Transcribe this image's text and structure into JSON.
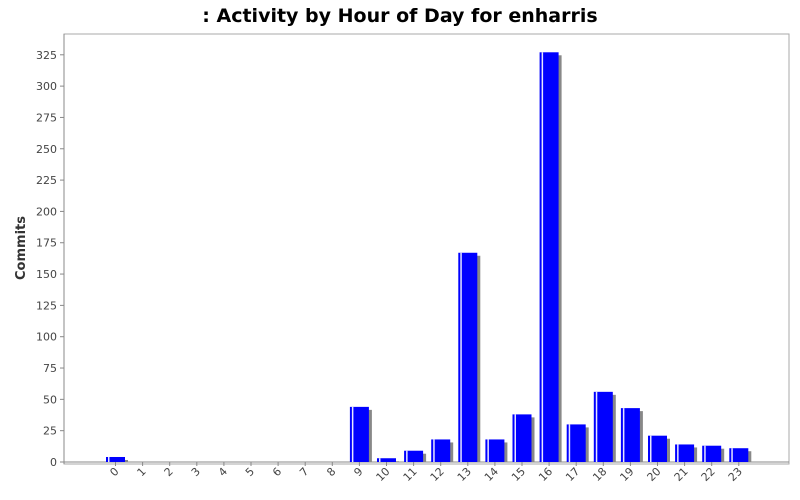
{
  "chart_data": {
    "type": "bar",
    "title": ": Activity by Hour of Day for enharris",
    "xlabel": "",
    "ylabel": "Commits",
    "categories": [
      "0",
      "1",
      "2",
      "3",
      "4",
      "5",
      "6",
      "7",
      "8",
      "9",
      "10",
      "11",
      "12",
      "13",
      "14",
      "15",
      "16",
      "17",
      "18",
      "19",
      "20",
      "21",
      "22",
      "23"
    ],
    "values": [
      4,
      0,
      0,
      0,
      0,
      0,
      0,
      0,
      0,
      44,
      3,
      9,
      18,
      167,
      18,
      38,
      327,
      30,
      56,
      43,
      21,
      14,
      13,
      11
    ],
    "ylim": [
      0,
      340
    ],
    "yticks": [
      0,
      25,
      50,
      75,
      100,
      125,
      150,
      175,
      200,
      225,
      250,
      275,
      300,
      325
    ],
    "grid": false,
    "colors": {
      "bar": "#0000ff",
      "bar_shadow": "#888888",
      "bar_highlight": "#ffffff",
      "axis": "#888888",
      "background": "#ffffff"
    }
  }
}
